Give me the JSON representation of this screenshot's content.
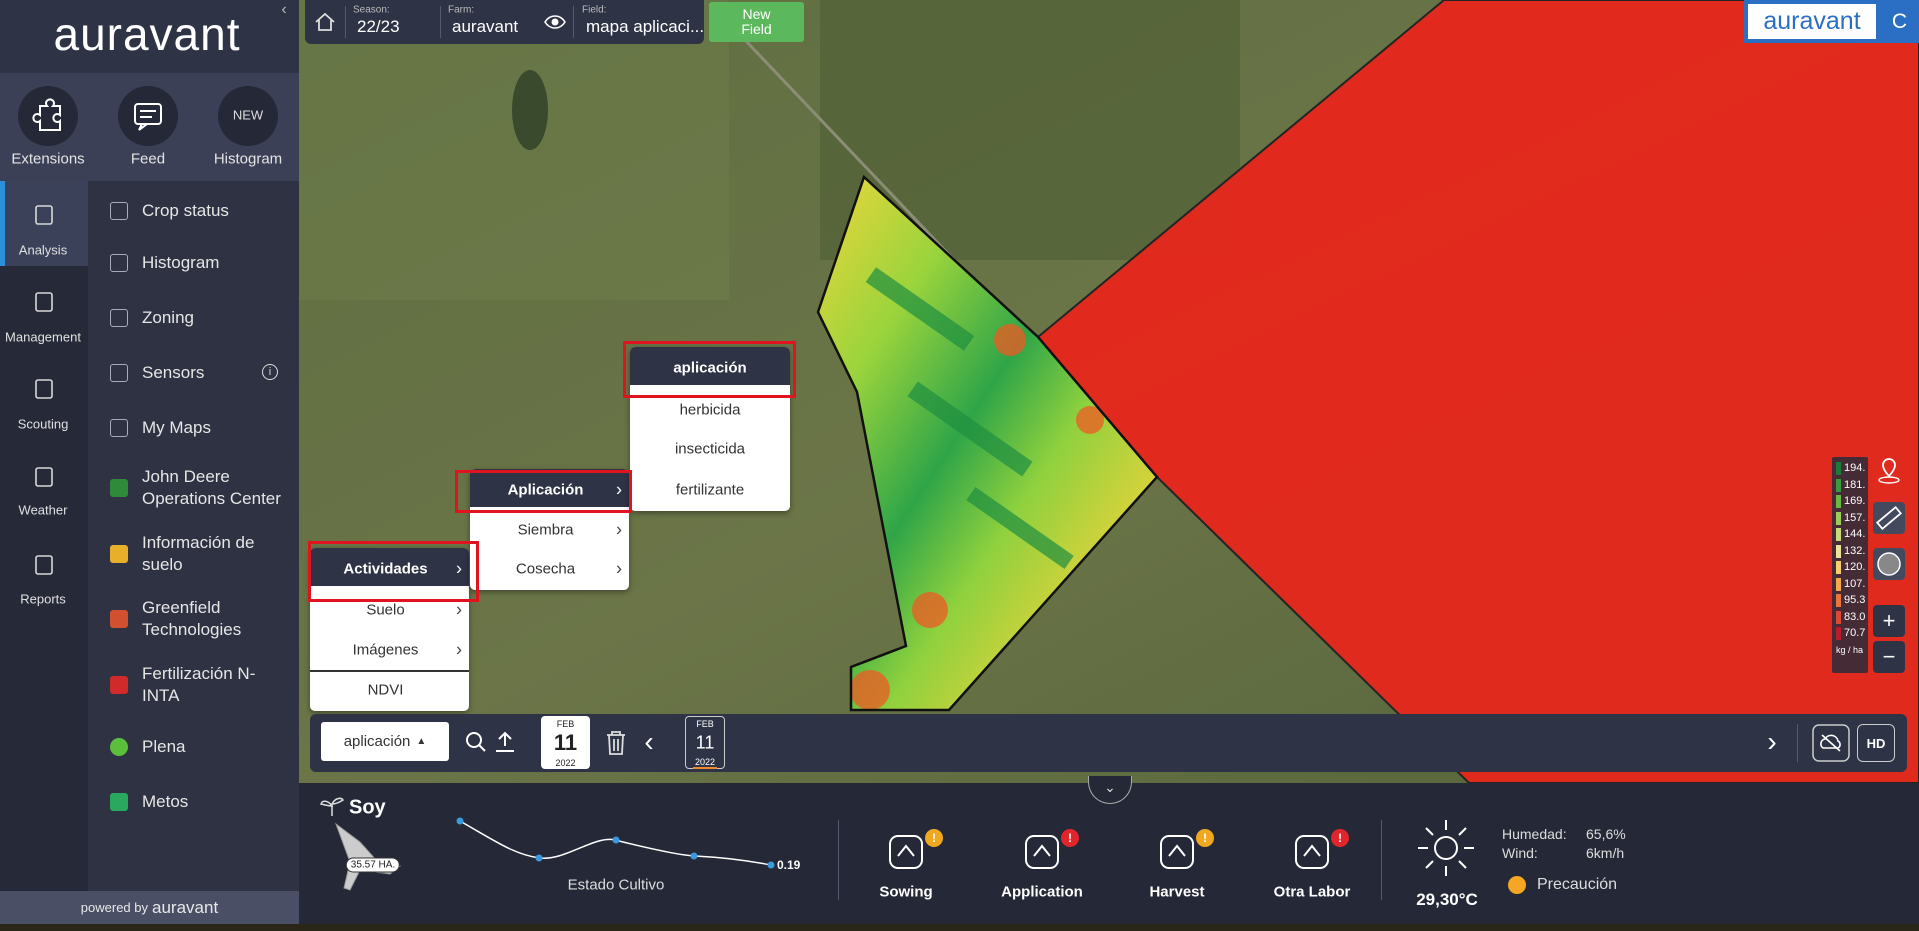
{
  "sidebar": {
    "logo": "auravant",
    "top_tools": [
      {
        "label": "Extensions"
      },
      {
        "label": "Feed"
      },
      {
        "badge": "NEW",
        "label": "Histogram"
      }
    ],
    "nav": [
      "Analysis",
      "Management",
      "Scouting",
      "Weather",
      "Reports"
    ],
    "menu": [
      "Crop status",
      "Histogram",
      "Zoning",
      "Sensors",
      "My Maps",
      "John Deere Operations Center",
      "Información de suelo",
      "Greenfield Technologies",
      "Fertilización N-INTA",
      "Plena",
      "Metos"
    ],
    "footer": {
      "prefix": "powered by",
      "brand": "auravant"
    }
  },
  "top_bar": {
    "season_label": "Season:",
    "season": "22/23",
    "farm_label": "Farm:",
    "farm": "auravant",
    "field_label": "Field:",
    "field": "mapa aplicaci...",
    "new_field": "New Field",
    "brand": "auravant",
    "user_initial": "C"
  },
  "menus": {
    "layers": [
      "Actividades",
      "Suelo",
      "Imágenes",
      "NDVI"
    ],
    "activities": [
      "Aplicación",
      "Siembra",
      "Cosecha"
    ],
    "application": [
      "aplicación",
      "herbicida",
      "insecticida",
      "fertilizante"
    ]
  },
  "toolbar": {
    "layer": "aplicación",
    "date": {
      "month": "FEB",
      "day": "11",
      "year": "2022"
    },
    "timeline_date": {
      "month": "FEB",
      "day": "11",
      "year": "2022"
    },
    "hd": "HD"
  },
  "legend": {
    "values": [
      "194.",
      "181.",
      "169.",
      "157.",
      "144.",
      "132.",
      "120.",
      "107.",
      "95.3",
      "83.0",
      "70.7"
    ],
    "unit": "kg / ha"
  },
  "bottom_panel": {
    "crop": "Soy",
    "area": "35.57 HA.",
    "crop_status": {
      "label": "Estado Cultivo",
      "last": "0.19"
    },
    "tasks": [
      "Sowing",
      "Application",
      "Harvest",
      "Otra Labor"
    ],
    "weather": {
      "temperature": "29,30°C",
      "humidity_label": "Humedad:",
      "humidity": "65,6%",
      "wind_label": "Wind:",
      "wind": "6km/h",
      "alert": "Precaución"
    }
  }
}
